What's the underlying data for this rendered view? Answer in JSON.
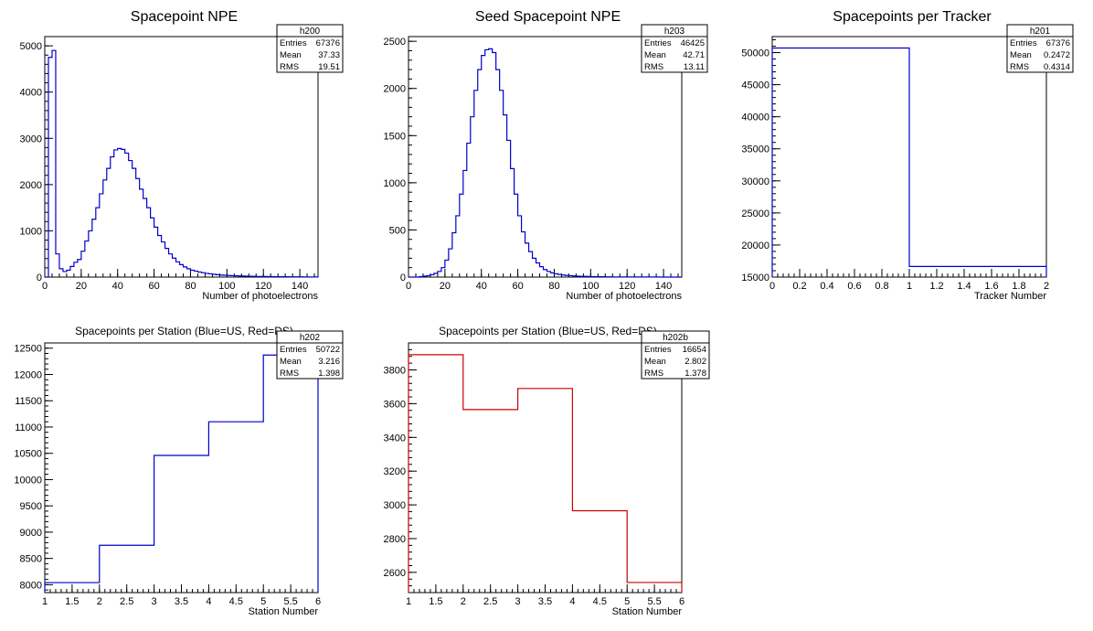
{
  "colors": {
    "blue": "#0000cc",
    "red": "#cc0000",
    "frame": "#000000"
  },
  "chart_data": [
    {
      "type": "histogram",
      "title": "Spacepoint NPE",
      "xlabel": "Number of photoelectrons",
      "stats": {
        "name": "h200",
        "rows": [
          [
            "Entries",
            "67376"
          ],
          [
            "Mean",
            "37.33"
          ],
          [
            "RMS",
            "19.51"
          ]
        ]
      },
      "xlim": [
        0,
        150
      ],
      "ylim": [
        0,
        5200
      ],
      "xticks": [
        0,
        20,
        40,
        60,
        80,
        100,
        120,
        140
      ],
      "yticks": [
        0,
        1000,
        2000,
        3000,
        4000,
        5000
      ],
      "bin_width": 2,
      "color": "blue",
      "values": [
        0,
        4750,
        4900,
        500,
        180,
        120,
        150,
        230,
        320,
        380,
        560,
        780,
        1000,
        1250,
        1500,
        1800,
        2100,
        2350,
        2600,
        2750,
        2780,
        2760,
        2680,
        2520,
        2350,
        2130,
        1900,
        1700,
        1500,
        1280,
        1080,
        900,
        760,
        620,
        500,
        410,
        330,
        270,
        220,
        180,
        150,
        130,
        110,
        95,
        80,
        70,
        60,
        52,
        45,
        40,
        35,
        31,
        28,
        25,
        22,
        20,
        18,
        16,
        14,
        13,
        12,
        11,
        10,
        9,
        8,
        8,
        7,
        6,
        6,
        5,
        5,
        4,
        4,
        3,
        3
      ]
    },
    {
      "type": "histogram",
      "title": "Seed Spacepoint NPE",
      "xlabel": "Number of photoelectrons",
      "stats": {
        "name": "h203",
        "rows": [
          [
            "Entries",
            "46425"
          ],
          [
            "Mean",
            "42.71"
          ],
          [
            "RMS",
            "13.11"
          ]
        ]
      },
      "xlim": [
        0,
        150
      ],
      "ylim": [
        0,
        2550
      ],
      "xticks": [
        0,
        20,
        40,
        60,
        80,
        100,
        120,
        140
      ],
      "yticks": [
        0,
        500,
        1000,
        1500,
        2000,
        2500
      ],
      "bin_width": 2,
      "color": "blue",
      "values": [
        0,
        0,
        0,
        5,
        10,
        15,
        25,
        40,
        60,
        100,
        180,
        300,
        470,
        650,
        880,
        1130,
        1420,
        1700,
        1980,
        2200,
        2350,
        2410,
        2420,
        2380,
        2200,
        1980,
        1720,
        1450,
        1150,
        880,
        650,
        480,
        360,
        270,
        200,
        150,
        110,
        80,
        60,
        45,
        35,
        28,
        22,
        18,
        15,
        12,
        10,
        8,
        7,
        6,
        5,
        5,
        4,
        4,
        3,
        3,
        2,
        2,
        2,
        2,
        1,
        1,
        1,
        1,
        1,
        1,
        1,
        1,
        1,
        0,
        0,
        0,
        0,
        0,
        0
      ]
    },
    {
      "type": "histogram",
      "title": "Spacepoints per Tracker",
      "xlabel": "Tracker Number",
      "stats": {
        "name": "h201",
        "rows": [
          [
            "Entries",
            "67376"
          ],
          [
            "Mean",
            "0.2472"
          ],
          [
            "RMS",
            "0.4314"
          ]
        ]
      },
      "xlim": [
        0,
        2
      ],
      "ylim": [
        15000,
        52500
      ],
      "xticks": [
        0,
        0.2,
        0.4,
        0.6,
        0.8,
        1,
        1.2,
        1.4,
        1.6,
        1.8,
        2
      ],
      "yticks": [
        15000,
        20000,
        25000,
        30000,
        35000,
        40000,
        45000,
        50000
      ],
      "bin_edges": [
        0,
        1,
        2
      ],
      "color": "blue",
      "values": [
        50722,
        16654
      ]
    },
    {
      "type": "histogram",
      "title": "Spacepoints per Station (Blue=US, Red=DS)",
      "xlabel": "Station Number",
      "stats": {
        "name": "h202",
        "rows": [
          [
            "Entries",
            "50722"
          ],
          [
            "Mean",
            "3.216"
          ],
          [
            "RMS",
            "1.398"
          ]
        ]
      },
      "xlim": [
        1,
        6
      ],
      "ylim": [
        7850,
        12600
      ],
      "xticks": [
        1,
        1.5,
        2,
        2.5,
        3,
        3.5,
        4,
        4.5,
        5,
        5.5,
        6
      ],
      "yticks": [
        8000,
        8500,
        9000,
        9500,
        10000,
        10500,
        11000,
        11500,
        12000,
        12500
      ],
      "bin_edges": [
        1,
        2,
        3,
        4,
        5,
        6
      ],
      "color": "blue",
      "values": [
        8040,
        8750,
        10460,
        11100,
        12370
      ]
    },
    {
      "type": "histogram",
      "title": "Spacepoints per Station (Blue=US, Red=DS)",
      "xlabel": "Station Number",
      "stats": {
        "name": "h202b",
        "rows": [
          [
            "Entries",
            "16654"
          ],
          [
            "Mean",
            "2.802"
          ],
          [
            "RMS",
            "1.378"
          ]
        ]
      },
      "xlim": [
        1,
        6
      ],
      "ylim": [
        2480,
        3960
      ],
      "xticks": [
        1,
        1.5,
        2,
        2.5,
        3,
        3.5,
        4,
        4.5,
        5,
        5.5,
        6
      ],
      "yticks": [
        2600,
        2800,
        3000,
        3200,
        3400,
        3600,
        3800
      ],
      "bin_edges": [
        1,
        2,
        3,
        4,
        5,
        6
      ],
      "color": "red",
      "values": [
        3890,
        3565,
        3690,
        2965,
        2540
      ]
    }
  ]
}
